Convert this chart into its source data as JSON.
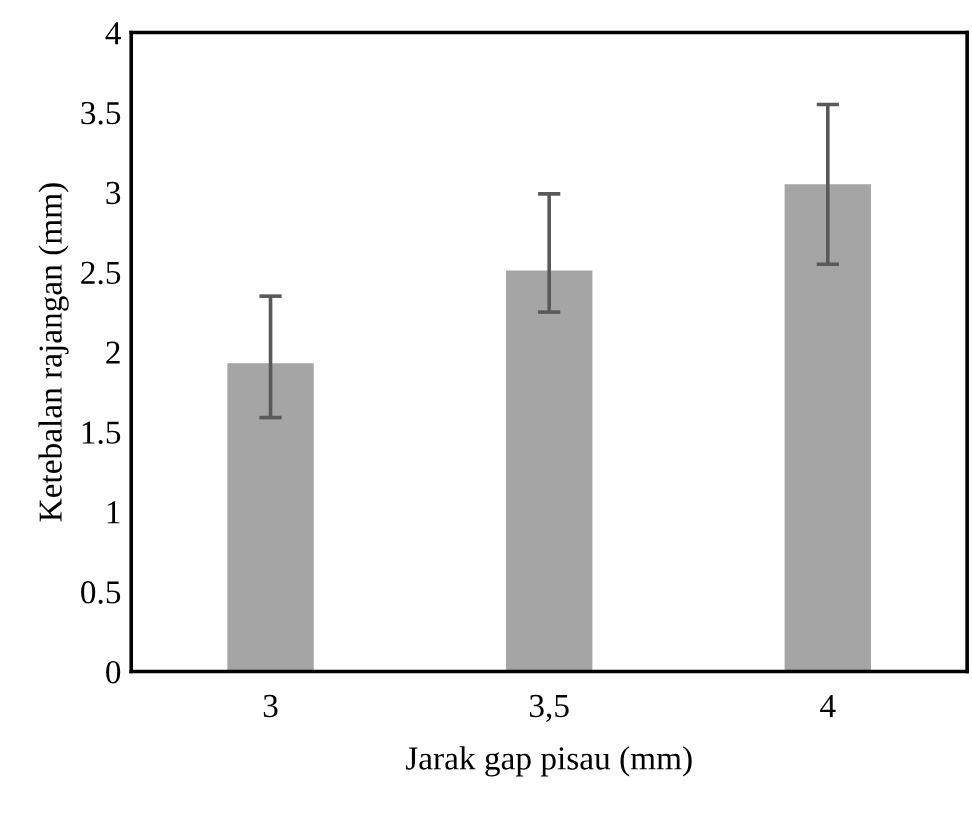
{
  "chart_data": {
    "type": "bar",
    "xlabel": "Jarak gap pisau (mm)",
    "ylabel": "Ketebalan rajangan (mm)",
    "categories": [
      "3",
      "3,5",
      "4"
    ],
    "values": [
      1.93,
      2.51,
      3.05
    ],
    "errors": [
      [
        1.59,
        2.35
      ],
      [
        2.25,
        2.99
      ],
      [
        2.55,
        3.55
      ]
    ],
    "color": "#a5a5a5",
    "ylim": [
      0,
      4
    ],
    "yticks": [
      0,
      {
        "value": 0.5,
        "label": "0.5"
      },
      1,
      {
        "value": 1.5,
        "label": "1.5"
      },
      2,
      {
        "value": 2.5,
        "label": "2.5"
      },
      3,
      {
        "value": 3.5,
        "label": "3.5"
      },
      4
    ],
    "grid": false
  }
}
